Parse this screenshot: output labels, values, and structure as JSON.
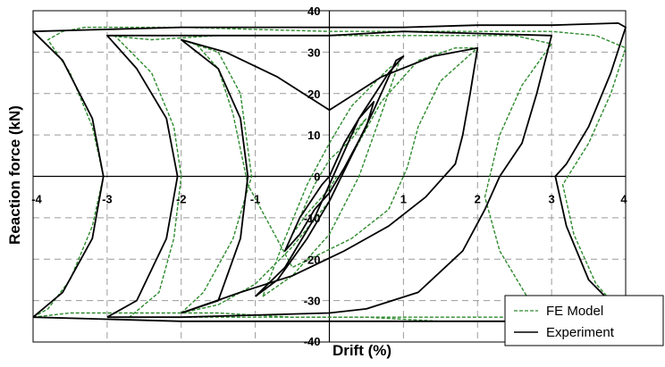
{
  "chart_data": {
    "type": "line",
    "title": "",
    "xlabel": "Drift (%)",
    "ylabel": "Reaction force (kN)",
    "xlim": [
      -4,
      4
    ],
    "ylim": [
      -40,
      40
    ],
    "xticks": [
      -4,
      -3,
      -2,
      -1,
      0,
      1,
      2,
      3,
      4
    ],
    "yticks": [
      -40,
      -30,
      -20,
      -10,
      0,
      10,
      20,
      30,
      40
    ],
    "grid": true,
    "legend_position": "bottom-right",
    "colors": {
      "fe_model": "#2e8b2e",
      "experiment": "#000000",
      "grid": "#9a9a9a"
    },
    "series": [
      {
        "name": "FE Model",
        "style": "dashed",
        "loops": [
          [
            [
              0,
              0
            ],
            [
              0.2,
              8
            ],
            [
              0.3,
              10
            ],
            [
              0.5,
              14
            ],
            [
              0.3,
              9
            ],
            [
              0,
              4
            ],
            [
              -0.2,
              -2
            ],
            [
              -0.3,
              -6
            ],
            [
              -0.5,
              -14
            ],
            [
              -0.3,
              -9
            ],
            [
              0,
              -3
            ],
            [
              0.1,
              0
            ]
          ],
          [
            [
              -0.9,
              -29
            ],
            [
              -0.5,
              -24
            ],
            [
              0,
              -14
            ],
            [
              0.4,
              0
            ],
            [
              0.7,
              15
            ],
            [
              0.95,
              28
            ],
            [
              0.8,
              26
            ],
            [
              0.3,
              17
            ],
            [
              0,
              8
            ],
            [
              -0.3,
              -2
            ],
            [
              -0.6,
              -15
            ],
            [
              -0.9,
              -29
            ]
          ],
          [
            [
              -2,
              -33
            ],
            [
              -1.5,
              -31
            ],
            [
              -1,
              -26
            ],
            [
              -0.5,
              -17
            ],
            [
              0,
              -6
            ],
            [
              0.3,
              5
            ],
            [
              0.7,
              18
            ],
            [
              1.2,
              28
            ],
            [
              1.7,
              31
            ],
            [
              2,
              31
            ],
            [
              1.5,
              23
            ],
            [
              1.2,
              12
            ],
            [
              1.05,
              2
            ],
            [
              0.8,
              -8
            ],
            [
              0.3,
              -15
            ],
            [
              -0.5,
              -22
            ],
            [
              -1.1,
              -2
            ],
            [
              -1.3,
              15
            ],
            [
              -1.5,
              26
            ],
            [
              -1.8,
              32
            ],
            [
              -2,
              33
            ],
            [
              -1.5,
              30
            ],
            [
              -1.2,
              20
            ],
            [
              -1.05,
              0
            ],
            [
              -1.3,
              -15
            ],
            [
              -1.7,
              -28
            ],
            [
              -2,
              -33
            ]
          ],
          [
            [
              -3,
              -34
            ],
            [
              -2.7,
              -34
            ],
            [
              -2.3,
              -28
            ],
            [
              -2.1,
              -15
            ],
            [
              -2,
              0
            ],
            [
              -2.1,
              12
            ],
            [
              -2.4,
              25
            ],
            [
              -2.9,
              34
            ],
            [
              -3,
              34
            ],
            [
              -2.4,
              33
            ],
            [
              -1.5,
              34
            ],
            [
              -0.5,
              34
            ],
            [
              0.5,
              34
            ],
            [
              1.5,
              34
            ],
            [
              2.5,
              34
            ],
            [
              3,
              32
            ],
            [
              2.6,
              22
            ],
            [
              2.3,
              10
            ],
            [
              2.1,
              -5
            ],
            [
              2.3,
              -18
            ],
            [
              2.7,
              -30
            ],
            [
              3,
              -34
            ],
            [
              2.4,
              -34
            ],
            [
              1.5,
              -34
            ],
            [
              0.5,
              -34
            ],
            [
              -1,
              -34
            ],
            [
              -2,
              -34
            ],
            [
              -3,
              -34
            ]
          ],
          [
            [
              -4,
              -34
            ],
            [
              -3.8,
              -32
            ],
            [
              -3.5,
              -25
            ],
            [
              -3.2,
              -12
            ],
            [
              -3.05,
              0
            ],
            [
              -3.2,
              12
            ],
            [
              -3.5,
              25
            ],
            [
              -3.8,
              33
            ],
            [
              -3.6,
              35
            ],
            [
              -3.3,
              36
            ],
            [
              -2,
              36
            ],
            [
              -1,
              35.5
            ],
            [
              0,
              35
            ],
            [
              1,
              35
            ],
            [
              2,
              35
            ],
            [
              3,
              35
            ],
            [
              3.6,
              34
            ],
            [
              4,
              31
            ],
            [
              3.8,
              20
            ],
            [
              3.5,
              8
            ],
            [
              3.15,
              -2
            ],
            [
              3.3,
              -14
            ],
            [
              3.6,
              -26
            ],
            [
              4,
              -34
            ],
            [
              3.5,
              -34
            ],
            [
              2.5,
              -35
            ],
            [
              1.5,
              -35
            ],
            [
              0.5,
              -34
            ],
            [
              -0.5,
              -34
            ],
            [
              -1.5,
              -33
            ],
            [
              -2.5,
              -33
            ],
            [
              -3.5,
              -33
            ],
            [
              -4,
              -34
            ]
          ]
        ]
      },
      {
        "name": "Experiment",
        "style": "solid",
        "loops": [
          [
            [
              0,
              0
            ],
            [
              0.2,
              8
            ],
            [
              0.4,
              14
            ],
            [
              0.6,
              18
            ],
            [
              0.5,
              12
            ],
            [
              0.2,
              2
            ],
            [
              0,
              -4
            ],
            [
              -0.2,
              -8
            ],
            [
              -0.4,
              -14
            ],
            [
              -0.6,
              -18
            ],
            [
              -0.4,
              -10
            ],
            [
              -0.1,
              -2
            ],
            [
              0,
              0
            ]
          ],
          [
            [
              -1,
              -29
            ],
            [
              -0.7,
              -25
            ],
            [
              -0.3,
              -15
            ],
            [
              0,
              -6
            ],
            [
              0.3,
              5
            ],
            [
              0.6,
              16
            ],
            [
              0.9,
              28
            ],
            [
              1,
              29
            ],
            [
              0.8,
              25
            ],
            [
              0.4,
              14
            ],
            [
              0.1,
              2
            ],
            [
              -0.2,
              -10
            ],
            [
              -0.6,
              -22
            ],
            [
              -1,
              -29
            ]
          ],
          [
            [
              -2,
              -33
            ],
            [
              -1.5,
              -30
            ],
            [
              -1.2,
              -15
            ],
            [
              -1.1,
              0
            ],
            [
              -1.2,
              14
            ],
            [
              -1.5,
              26
            ],
            [
              -2,
              33
            ],
            [
              -1.4,
              30
            ],
            [
              -0.7,
              24
            ],
            [
              0,
              16
            ],
            [
              0.7,
              24
            ],
            [
              1.4,
              29
            ],
            [
              2,
              31
            ],
            [
              1.9,
              20
            ],
            [
              1.8,
              10
            ],
            [
              1.7,
              3
            ],
            [
              1.3,
              -5
            ],
            [
              0.8,
              -12
            ],
            [
              0.2,
              -18
            ],
            [
              -0.5,
              -24
            ],
            [
              -1.2,
              -28
            ],
            [
              -2,
              -33
            ]
          ],
          [
            [
              -3,
              -34
            ],
            [
              -2.6,
              -30
            ],
            [
              -2.2,
              -15
            ],
            [
              -2.05,
              0
            ],
            [
              -2.2,
              14
            ],
            [
              -2.6,
              26
            ],
            [
              -3,
              34
            ],
            [
              -2,
              34
            ],
            [
              -1,
              34
            ],
            [
              0,
              34
            ],
            [
              1,
              35
            ],
            [
              2,
              34.5
            ],
            [
              3,
              34
            ],
            [
              2.8,
              20
            ],
            [
              2.6,
              8
            ],
            [
              2.3,
              0
            ],
            [
              2.1,
              -8
            ],
            [
              1.8,
              -18
            ],
            [
              1.2,
              -28
            ],
            [
              0.5,
              -32
            ],
            [
              0,
              -33
            ],
            [
              -1,
              -33.5
            ],
            [
              -2,
              -34
            ],
            [
              -3,
              -34
            ]
          ],
          [
            [
              -4,
              -34
            ],
            [
              -3.6,
              -28
            ],
            [
              -3.2,
              -15
            ],
            [
              -3.05,
              0
            ],
            [
              -3.2,
              14
            ],
            [
              -3.6,
              28
            ],
            [
              -4,
              35
            ],
            [
              -3,
              35.5
            ],
            [
              -2,
              36
            ],
            [
              -1,
              36
            ],
            [
              0,
              36
            ],
            [
              1,
              36
            ],
            [
              2,
              36.5
            ],
            [
              3,
              36.5
            ],
            [
              3.9,
              37
            ],
            [
              4,
              36
            ],
            [
              3.8,
              25
            ],
            [
              3.5,
              12
            ],
            [
              3.2,
              3
            ],
            [
              3.05,
              0
            ],
            [
              3.2,
              -12
            ],
            [
              3.5,
              -25
            ],
            [
              4,
              -34
            ],
            [
              3,
              -35
            ],
            [
              2,
              -35
            ],
            [
              1,
              -35
            ],
            [
              0,
              -35
            ],
            [
              -1,
              -35
            ],
            [
              -2,
              -35
            ],
            [
              -3,
              -34.5
            ],
            [
              -4,
              -34
            ]
          ]
        ]
      }
    ]
  }
}
